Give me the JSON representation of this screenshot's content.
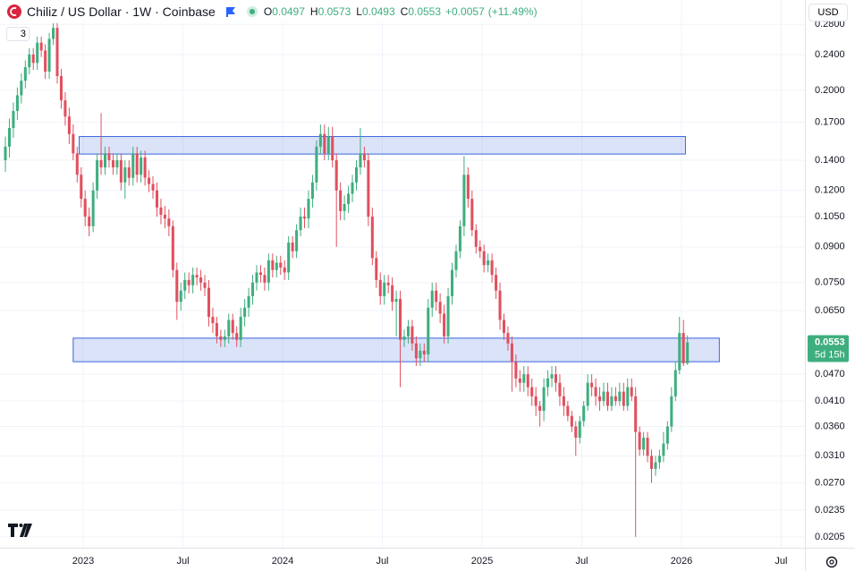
{
  "chart_data": {
    "type": "candlestick",
    "header": {
      "symbol": "Chiliz / US Dollar · 1W · Coinbase",
      "open_label": "O",
      "high_label": "H",
      "low_label": "L",
      "close_label": "C",
      "change": {
        "value": 0.0057,
        "label": "+0.0057"
      },
      "change_percent": {
        "value": 11.49,
        "label": "(+11.49%)"
      }
    },
    "currency": "USD",
    "indicator_count": "3",
    "countdown": "5d 15h",
    "log_scale": true,
    "grid": true,
    "up_color": "#3fae7f",
    "down_color": "#e0505e",
    "zone_color": "#3a66dd",
    "xlim": [
      2022.583,
      2026.619
    ],
    "xticks": [
      {
        "value": 2023,
        "label": "2023"
      },
      {
        "value": 2023.5,
        "label": "Jul"
      },
      {
        "value": 2024,
        "label": "2024"
      },
      {
        "value": 2024.5,
        "label": "Jul"
      },
      {
        "value": 2025,
        "label": "2025"
      },
      {
        "value": 2025.5,
        "label": "Jul"
      },
      {
        "value": 2026,
        "label": "2026"
      },
      {
        "value": 2026.5,
        "label": "Jul"
      }
    ],
    "ylim": [
      0.0194,
      0.317
    ],
    "yticks": [
      {
        "value": 0.28,
        "label": "0.2800"
      },
      {
        "value": 0.24,
        "label": "0.2400"
      },
      {
        "value": 0.2,
        "label": "0.2000"
      },
      {
        "value": 0.17,
        "label": "0.1700"
      },
      {
        "value": 0.14,
        "label": "0.1400"
      },
      {
        "value": 0.12,
        "label": "0.1200"
      },
      {
        "value": 0.105,
        "label": "0.1050"
      },
      {
        "value": 0.09,
        "label": "0.0900"
      },
      {
        "value": 0.075,
        "label": "0.0750"
      },
      {
        "value": 0.065,
        "label": "0.0650"
      },
      {
        "value": 0.047,
        "label": "0.0470"
      },
      {
        "value": 0.041,
        "label": "0.0410"
      },
      {
        "value": 0.036,
        "label": "0.0360"
      },
      {
        "value": 0.031,
        "label": "0.0310"
      },
      {
        "value": 0.027,
        "label": "0.0270"
      },
      {
        "value": 0.0235,
        "label": "0.0235"
      },
      {
        "value": 0.0205,
        "label": "0.0205"
      }
    ],
    "zones": [
      {
        "x": [
          2022.98,
          2026.02
        ],
        "y": [
          0.1445,
          0.158
        ]
      },
      {
        "x": [
          2022.95,
          2026.19
        ],
        "y": [
          0.0501,
          0.0565
        ]
      }
    ],
    "x": [
      2022.61,
      2022.63,
      2022.65,
      2022.67,
      2022.69,
      2022.71,
      2022.73,
      2022.75,
      2022.77,
      2022.79,
      2022.81,
      2022.83,
      2022.85,
      2022.87,
      2022.89,
      2022.91,
      2022.93,
      2022.95,
      2022.97,
      2022.99,
      2023.01,
      2023.03,
      2023.05,
      2023.07,
      2023.09,
      2023.11,
      2023.13,
      2023.15,
      2023.17,
      2023.19,
      2023.21,
      2023.23,
      2023.25,
      2023.27,
      2023.29,
      2023.31,
      2023.33,
      2023.35,
      2023.37,
      2023.39,
      2023.41,
      2023.43,
      2023.45,
      2023.47,
      2023.49,
      2023.51,
      2023.53,
      2023.55,
      2023.57,
      2023.59,
      2023.61,
      2023.63,
      2023.65,
      2023.67,
      2023.69,
      2023.71,
      2023.73,
      2023.75,
      2023.77,
      2023.79,
      2023.81,
      2023.83,
      2023.85,
      2023.87,
      2023.89,
      2023.91,
      2023.93,
      2023.95,
      2023.97,
      2023.99,
      2024.01,
      2024.03,
      2024.05,
      2024.07,
      2024.09,
      2024.11,
      2024.13,
      2024.15,
      2024.17,
      2024.19,
      2024.21,
      2024.23,
      2024.25,
      2024.27,
      2024.29,
      2024.31,
      2024.33,
      2024.35,
      2024.37,
      2024.39,
      2024.41,
      2024.43,
      2024.45,
      2024.47,
      2024.49,
      2024.51,
      2024.53,
      2024.55,
      2024.57,
      2024.59,
      2024.61,
      2024.63,
      2024.65,
      2024.67,
      2024.69,
      2024.71,
      2024.73,
      2024.75,
      2024.77,
      2024.79,
      2024.81,
      2024.83,
      2024.85,
      2024.87,
      2024.89,
      2024.91,
      2024.93,
      2024.95,
      2024.97,
      2024.99,
      2025.01,
      2025.03,
      2025.05,
      2025.07,
      2025.09,
      2025.11,
      2025.13,
      2025.15,
      2025.17,
      2025.19,
      2025.21,
      2025.23,
      2025.25,
      2025.27,
      2025.29,
      2025.31,
      2025.33,
      2025.35,
      2025.37,
      2025.39,
      2025.41,
      2025.43,
      2025.45,
      2025.47,
      2025.49,
      2025.51,
      2025.53,
      2025.55,
      2025.57,
      2025.59,
      2025.61,
      2025.63,
      2025.65,
      2025.67,
      2025.69,
      2025.71,
      2025.73,
      2025.75,
      2025.77,
      2025.79,
      2025.81,
      2025.83,
      2025.85,
      2025.87,
      2025.89,
      2025.91,
      2025.93,
      2025.95,
      2025.97,
      2025.99,
      2026.01,
      2026.03
    ],
    "open": [
      0.14,
      0.15,
      0.165,
      0.18,
      0.195,
      0.21,
      0.225,
      0.24,
      0.23,
      0.255,
      0.245,
      0.22,
      0.26,
      0.275,
      0.215,
      0.19,
      0.175,
      0.16,
      0.145,
      0.13,
      0.115,
      0.105,
      0.1,
      0.12,
      0.14,
      0.135,
      0.145,
      0.14,
      0.135,
      0.14,
      0.125,
      0.135,
      0.128,
      0.145,
      0.13,
      0.142,
      0.128,
      0.124,
      0.12,
      0.11,
      0.106,
      0.104,
      0.1,
      0.08,
      0.068,
      0.072,
      0.076,
      0.074,
      0.078,
      0.077,
      0.075,
      0.073,
      0.063,
      0.061,
      0.057,
      0.056,
      0.057,
      0.062,
      0.058,
      0.056,
      0.063,
      0.066,
      0.07,
      0.075,
      0.079,
      0.078,
      0.075,
      0.084,
      0.08,
      0.083,
      0.081,
      0.079,
      0.092,
      0.088,
      0.098,
      0.105,
      0.104,
      0.115,
      0.125,
      0.15,
      0.16,
      0.145,
      0.158,
      0.14,
      0.12,
      0.108,
      0.112,
      0.118,
      0.125,
      0.135,
      0.145,
      0.14,
      0.105,
      0.085,
      0.076,
      0.07,
      0.075,
      0.074,
      0.068,
      0.069,
      0.056,
      0.057,
      0.06,
      0.055,
      0.051,
      0.053,
      0.052,
      0.066,
      0.072,
      0.068,
      0.064,
      0.057,
      0.07,
      0.08,
      0.088,
      0.1,
      0.13,
      0.115,
      0.098,
      0.09,
      0.088,
      0.082,
      0.084,
      0.078,
      0.072,
      0.062,
      0.058,
      0.055,
      0.05,
      0.046,
      0.045,
      0.047,
      0.044,
      0.042,
      0.04,
      0.039,
      0.044,
      0.046,
      0.047,
      0.045,
      0.042,
      0.04,
      0.038,
      0.036,
      0.034,
      0.037,
      0.04,
      0.045,
      0.044,
      0.042,
      0.041,
      0.043,
      0.04,
      0.042,
      0.041,
      0.043,
      0.04,
      0.044,
      0.042,
      0.035,
      0.032,
      0.034,
      0.031,
      0.029,
      0.03,
      0.031,
      0.033,
      0.036,
      0.042,
      0.048,
      0.058,
      0.0497
    ],
    "high": [
      0.158,
      0.173,
      0.188,
      0.203,
      0.218,
      0.233,
      0.248,
      0.248,
      0.263,
      0.263,
      0.253,
      0.268,
      0.283,
      0.283,
      0.223,
      0.198,
      0.183,
      0.168,
      0.15,
      0.135,
      0.12,
      0.11,
      0.125,
      0.145,
      0.178,
      0.15,
      0.15,
      0.145,
      0.145,
      0.145,
      0.14,
      0.14,
      0.15,
      0.15,
      0.147,
      0.147,
      0.133,
      0.129,
      0.125,
      0.115,
      0.111,
      0.109,
      0.103,
      0.083,
      0.075,
      0.079,
      0.079,
      0.081,
      0.081,
      0.08,
      0.078,
      0.076,
      0.066,
      0.063,
      0.059,
      0.059,
      0.064,
      0.064,
      0.06,
      0.066,
      0.069,
      0.073,
      0.078,
      0.082,
      0.082,
      0.081,
      0.087,
      0.087,
      0.086,
      0.086,
      0.084,
      0.095,
      0.095,
      0.101,
      0.11,
      0.11,
      0.12,
      0.13,
      0.155,
      0.168,
      0.168,
      0.166,
      0.166,
      0.145,
      0.125,
      0.117,
      0.123,
      0.13,
      0.14,
      0.165,
      0.15,
      0.145,
      0.11,
      0.088,
      0.079,
      0.078,
      0.078,
      0.077,
      0.072,
      0.072,
      0.059,
      0.062,
      0.062,
      0.057,
      0.055,
      0.055,
      0.069,
      0.075,
      0.075,
      0.071,
      0.067,
      0.073,
      0.083,
      0.091,
      0.103,
      0.143,
      0.135,
      0.12,
      0.101,
      0.093,
      0.091,
      0.087,
      0.087,
      0.081,
      0.075,
      0.064,
      0.06,
      0.057,
      0.052,
      0.048,
      0.049,
      0.049,
      0.046,
      0.044,
      0.041,
      0.046,
      0.048,
      0.049,
      0.049,
      0.047,
      0.044,
      0.041,
      0.039,
      0.037,
      0.038,
      0.041,
      0.047,
      0.047,
      0.046,
      0.044,
      0.045,
      0.045,
      0.044,
      0.044,
      0.045,
      0.045,
      0.046,
      0.046,
      0.044,
      0.036,
      0.035,
      0.035,
      0.032,
      0.031,
      0.032,
      0.035,
      0.037,
      0.044,
      0.05,
      0.063,
      0.062,
      0.0573
    ],
    "low": [
      0.132,
      0.142,
      0.157,
      0.172,
      0.187,
      0.202,
      0.217,
      0.222,
      0.222,
      0.237,
      0.212,
      0.212,
      0.252,
      0.207,
      0.182,
      0.167,
      0.152,
      0.14,
      0.125,
      0.11,
      0.1,
      0.095,
      0.097,
      0.115,
      0.13,
      0.13,
      0.135,
      0.13,
      0.13,
      0.12,
      0.115,
      0.123,
      0.123,
      0.125,
      0.125,
      0.123,
      0.119,
      0.115,
      0.105,
      0.101,
      0.099,
      0.095,
      0.077,
      0.062,
      0.065,
      0.069,
      0.071,
      0.071,
      0.074,
      0.072,
      0.07,
      0.06,
      0.058,
      0.055,
      0.054,
      0.054,
      0.055,
      0.056,
      0.054,
      0.054,
      0.06,
      0.063,
      0.067,
      0.072,
      0.075,
      0.072,
      0.072,
      0.077,
      0.077,
      0.078,
      0.076,
      0.076,
      0.085,
      0.085,
      0.095,
      0.099,
      0.099,
      0.11,
      0.12,
      0.145,
      0.14,
      0.14,
      0.135,
      0.09,
      0.103,
      0.103,
      0.107,
      0.113,
      0.12,
      0.13,
      0.135,
      0.1,
      0.082,
      0.073,
      0.067,
      0.067,
      0.071,
      0.065,
      0.057,
      0.044,
      0.054,
      0.055,
      0.053,
      0.049,
      0.049,
      0.05,
      0.05,
      0.063,
      0.065,
      0.061,
      0.055,
      0.055,
      0.067,
      0.077,
      0.085,
      0.095,
      0.11,
      0.095,
      0.087,
      0.085,
      0.079,
      0.079,
      0.075,
      0.069,
      0.059,
      0.056,
      0.053,
      0.043,
      0.044,
      0.043,
      0.043,
      0.042,
      0.04,
      0.038,
      0.036,
      0.037,
      0.042,
      0.044,
      0.043,
      0.04,
      0.038,
      0.037,
      0.035,
      0.031,
      0.033,
      0.036,
      0.039,
      0.042,
      0.04,
      0.039,
      0.04,
      0.039,
      0.039,
      0.04,
      0.04,
      0.039,
      0.039,
      0.041,
      0.0205,
      0.031,
      0.031,
      0.03,
      0.027,
      0.028,
      0.029,
      0.03,
      0.032,
      0.035,
      0.041,
      0.047,
      0.049,
      0.0493
    ],
    "close": [
      0.15,
      0.165,
      0.18,
      0.195,
      0.21,
      0.225,
      0.24,
      0.23,
      0.255,
      0.245,
      0.22,
      0.26,
      0.275,
      0.215,
      0.19,
      0.175,
      0.16,
      0.145,
      0.13,
      0.115,
      0.105,
      0.1,
      0.12,
      0.14,
      0.135,
      0.145,
      0.14,
      0.135,
      0.14,
      0.125,
      0.135,
      0.128,
      0.145,
      0.13,
      0.142,
      0.128,
      0.124,
      0.12,
      0.11,
      0.106,
      0.104,
      0.1,
      0.08,
      0.068,
      0.072,
      0.076,
      0.074,
      0.078,
      0.077,
      0.075,
      0.073,
      0.063,
      0.061,
      0.057,
      0.056,
      0.057,
      0.062,
      0.058,
      0.056,
      0.063,
      0.066,
      0.07,
      0.075,
      0.079,
      0.078,
      0.075,
      0.084,
      0.08,
      0.083,
      0.081,
      0.079,
      0.092,
      0.088,
      0.098,
      0.105,
      0.104,
      0.115,
      0.125,
      0.15,
      0.16,
      0.145,
      0.158,
      0.14,
      0.12,
      0.108,
      0.112,
      0.118,
      0.125,
      0.135,
      0.145,
      0.14,
      0.105,
      0.085,
      0.076,
      0.07,
      0.075,
      0.074,
      0.068,
      0.069,
      0.056,
      0.057,
      0.06,
      0.055,
      0.051,
      0.053,
      0.052,
      0.066,
      0.072,
      0.068,
      0.064,
      0.057,
      0.07,
      0.08,
      0.088,
      0.1,
      0.13,
      0.115,
      0.098,
      0.09,
      0.088,
      0.082,
      0.084,
      0.078,
      0.072,
      0.062,
      0.058,
      0.055,
      0.05,
      0.046,
      0.045,
      0.047,
      0.044,
      0.042,
      0.04,
      0.039,
      0.044,
      0.046,
      0.047,
      0.045,
      0.042,
      0.04,
      0.038,
      0.036,
      0.034,
      0.037,
      0.04,
      0.045,
      0.044,
      0.042,
      0.041,
      0.043,
      0.04,
      0.042,
      0.041,
      0.043,
      0.04,
      0.044,
      0.042,
      0.035,
      0.032,
      0.034,
      0.031,
      0.029,
      0.03,
      0.031,
      0.033,
      0.036,
      0.042,
      0.048,
      0.058,
      0.0497,
      0.0553
    ]
  }
}
